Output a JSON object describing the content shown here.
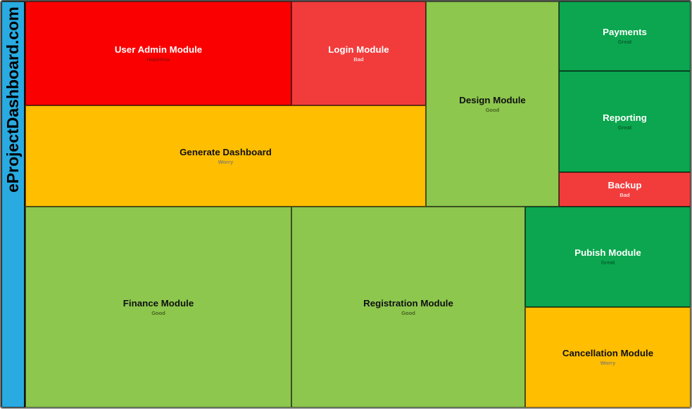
{
  "brand": {
    "title": "eProjectDashboard.com",
    "color": "#29ABE2"
  },
  "tiles": [
    {
      "title": "User Admin Module",
      "status": "Hopeless",
      "color": "#FB0000",
      "title_color": "#FFFFFF",
      "status_color": "#9E0B0B"
    },
    {
      "title": "Login Module",
      "status": "Bad",
      "color": "#F23C3C",
      "title_color": "#FFFFFF",
      "status_color": "#FFD6D6"
    },
    {
      "title": "Design Module",
      "status": "Good",
      "color": "#8DC74E",
      "title_color": "#101010",
      "status_color": "#47641F"
    },
    {
      "title": "Payments",
      "status": "Great",
      "color": "#0BA64F",
      "title_color": "#FFFFFF",
      "status_color": "#07622E"
    },
    {
      "title": "Reporting",
      "status": "Great",
      "color": "#0BA64F",
      "title_color": "#FFFFFF",
      "status_color": "#07622E"
    },
    {
      "title": "Backup",
      "status": "Bad",
      "color": "#F23C3C",
      "title_color": "#FFFFFF",
      "status_color": "#FFD6D6"
    },
    {
      "title": "Generate Dashboard",
      "status": "Worry",
      "color": "#FFBE00",
      "title_color": "#101010",
      "status_color": "#8C8162"
    },
    {
      "title": "Finance Module",
      "status": "Good",
      "color": "#8DC74E",
      "title_color": "#101010",
      "status_color": "#47641F"
    },
    {
      "title": "Registration Module",
      "status": "Good",
      "color": "#8DC74E",
      "title_color": "#101010",
      "status_color": "#47641F"
    },
    {
      "title": "Pubish Module",
      "status": "Great",
      "color": "#0BA64F",
      "title_color": "#FFFFFF",
      "status_color": "#07622E"
    },
    {
      "title": "Cancellation Module",
      "status": "Worry",
      "color": "#FFBE00",
      "title_color": "#101010",
      "status_color": "#8C8162"
    }
  ]
}
